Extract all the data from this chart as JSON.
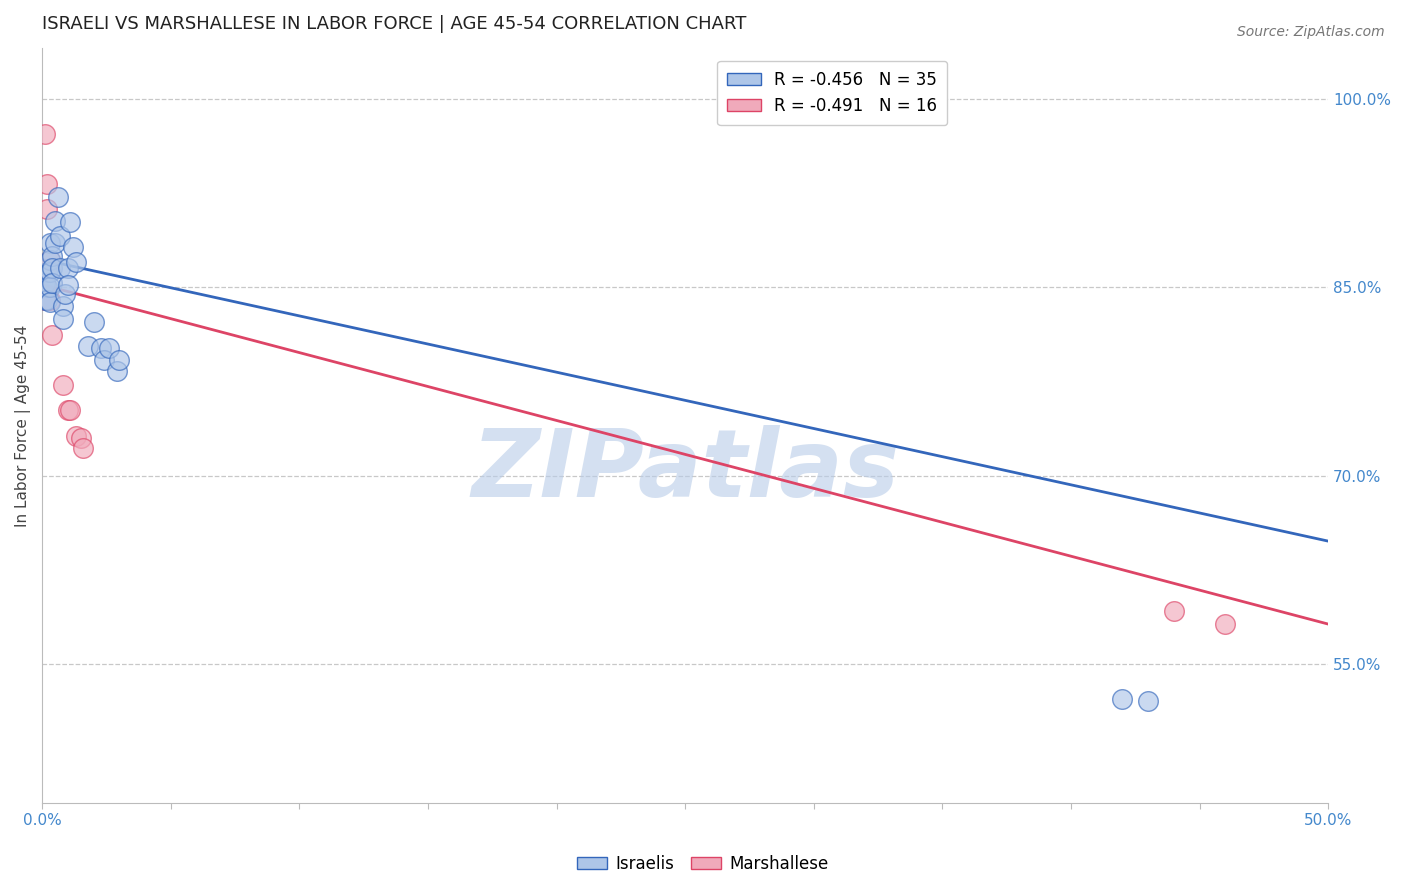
{
  "title": "ISRAELI VS MARSHALLESE IN LABOR FORCE | AGE 45-54 CORRELATION CHART",
  "source": "Source: ZipAtlas.com",
  "ylabel": "In Labor Force | Age 45-54",
  "xlim": [
    0.0,
    0.5
  ],
  "ylim": [
    0.44,
    1.04
  ],
  "xticks": [
    0.0,
    0.05,
    0.1,
    0.15,
    0.2,
    0.25,
    0.3,
    0.35,
    0.4,
    0.45,
    0.5
  ],
  "xtick_labels_show": [
    "0.0%",
    "",
    "",
    "",
    "",
    "",
    "",
    "",
    "",
    "",
    "50.0%"
  ],
  "yticks_right": [
    0.55,
    0.7,
    0.85,
    1.0
  ],
  "ytick_labels_right": [
    "55.0%",
    "70.0%",
    "85.0%",
    "100.0%"
  ],
  "grid_color": "#c8c8c8",
  "watermark": "ZIPatlas",
  "watermark_color": "#b8cce8",
  "israeli_color": "#aec6e8",
  "marshallese_color": "#f0aabb",
  "israeli_line_color": "#3366bb",
  "marshallese_line_color": "#dd4466",
  "legend_R_israeli": "R = -0.456",
  "legend_N_israeli": "N = 35",
  "legend_R_marshallese": "R = -0.491",
  "legend_N_marshallese": "N = 16",
  "israeli_x": [
    0.001,
    0.001,
    0.002,
    0.002,
    0.002,
    0.003,
    0.003,
    0.003,
    0.003,
    0.003,
    0.004,
    0.004,
    0.004,
    0.005,
    0.005,
    0.006,
    0.007,
    0.007,
    0.008,
    0.008,
    0.009,
    0.01,
    0.01,
    0.011,
    0.012,
    0.013,
    0.018,
    0.02,
    0.023,
    0.024,
    0.026,
    0.029,
    0.03,
    0.42,
    0.43
  ],
  "israeli_y": [
    0.853,
    0.84,
    0.862,
    0.85,
    0.84,
    0.885,
    0.872,
    0.862,
    0.85,
    0.838,
    0.875,
    0.865,
    0.853,
    0.903,
    0.885,
    0.922,
    0.891,
    0.865,
    0.835,
    0.825,
    0.845,
    0.865,
    0.852,
    0.902,
    0.882,
    0.87,
    0.803,
    0.822,
    0.802,
    0.792,
    0.802,
    0.783,
    0.792,
    0.522,
    0.521
  ],
  "marshallese_x": [
    0.001,
    0.001,
    0.001,
    0.002,
    0.002,
    0.003,
    0.003,
    0.004,
    0.008,
    0.01,
    0.011,
    0.013,
    0.015,
    0.016,
    0.44,
    0.46
  ],
  "marshallese_y": [
    0.972,
    0.852,
    0.84,
    0.932,
    0.912,
    0.872,
    0.84,
    0.812,
    0.772,
    0.752,
    0.752,
    0.732,
    0.73,
    0.722,
    0.592,
    0.582
  ],
  "blue_line_x0": 0.0,
  "blue_line_y0": 0.872,
  "blue_line_x1": 0.5,
  "blue_line_y1": 0.648,
  "pink_line_x0": 0.0,
  "pink_line_y0": 0.852,
  "pink_line_x1": 0.5,
  "pink_line_y1": 0.582,
  "title_fontsize": 13,
  "axis_label_fontsize": 11,
  "tick_fontsize": 11,
  "tick_color": "#4488cc",
  "legend_fontsize": 12,
  "source_fontsize": 10
}
